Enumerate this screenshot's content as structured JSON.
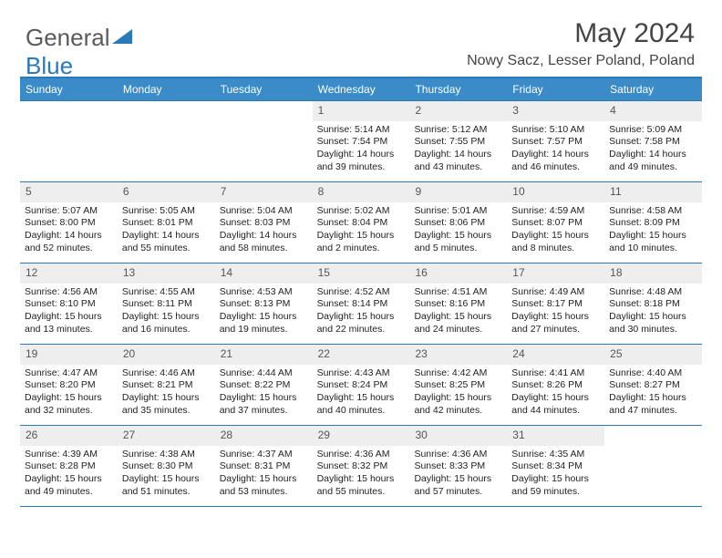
{
  "logo": {
    "part1": "General",
    "part2": "Blue"
  },
  "title": "May 2024",
  "subtitle": "Nowy Sacz, Lesser Poland, Poland",
  "calendar": {
    "header_bg": "#3b8bc9",
    "header_fg": "#ffffff",
    "border_color": "#2a7ab9",
    "daynum_bg": "#eeeeee",
    "text_color": "#222222",
    "font_size_body": 10.5,
    "font_size_header": 12,
    "days_of_week": [
      "Sunday",
      "Monday",
      "Tuesday",
      "Wednesday",
      "Thursday",
      "Friday",
      "Saturday"
    ],
    "weeks": [
      [
        null,
        null,
        null,
        {
          "n": "1",
          "sunrise": "5:14 AM",
          "sunset": "7:54 PM",
          "daylight": "14 hours and 39 minutes."
        },
        {
          "n": "2",
          "sunrise": "5:12 AM",
          "sunset": "7:55 PM",
          "daylight": "14 hours and 43 minutes."
        },
        {
          "n": "3",
          "sunrise": "5:10 AM",
          "sunset": "7:57 PM",
          "daylight": "14 hours and 46 minutes."
        },
        {
          "n": "4",
          "sunrise": "5:09 AM",
          "sunset": "7:58 PM",
          "daylight": "14 hours and 49 minutes."
        }
      ],
      [
        {
          "n": "5",
          "sunrise": "5:07 AM",
          "sunset": "8:00 PM",
          "daylight": "14 hours and 52 minutes."
        },
        {
          "n": "6",
          "sunrise": "5:05 AM",
          "sunset": "8:01 PM",
          "daylight": "14 hours and 55 minutes."
        },
        {
          "n": "7",
          "sunrise": "5:04 AM",
          "sunset": "8:03 PM",
          "daylight": "14 hours and 58 minutes."
        },
        {
          "n": "8",
          "sunrise": "5:02 AM",
          "sunset": "8:04 PM",
          "daylight": "15 hours and 2 minutes."
        },
        {
          "n": "9",
          "sunrise": "5:01 AM",
          "sunset": "8:06 PM",
          "daylight": "15 hours and 5 minutes."
        },
        {
          "n": "10",
          "sunrise": "4:59 AM",
          "sunset": "8:07 PM",
          "daylight": "15 hours and 8 minutes."
        },
        {
          "n": "11",
          "sunrise": "4:58 AM",
          "sunset": "8:09 PM",
          "daylight": "15 hours and 10 minutes."
        }
      ],
      [
        {
          "n": "12",
          "sunrise": "4:56 AM",
          "sunset": "8:10 PM",
          "daylight": "15 hours and 13 minutes."
        },
        {
          "n": "13",
          "sunrise": "4:55 AM",
          "sunset": "8:11 PM",
          "daylight": "15 hours and 16 minutes."
        },
        {
          "n": "14",
          "sunrise": "4:53 AM",
          "sunset": "8:13 PM",
          "daylight": "15 hours and 19 minutes."
        },
        {
          "n": "15",
          "sunrise": "4:52 AM",
          "sunset": "8:14 PM",
          "daylight": "15 hours and 22 minutes."
        },
        {
          "n": "16",
          "sunrise": "4:51 AM",
          "sunset": "8:16 PM",
          "daylight": "15 hours and 24 minutes."
        },
        {
          "n": "17",
          "sunrise": "4:49 AM",
          "sunset": "8:17 PM",
          "daylight": "15 hours and 27 minutes."
        },
        {
          "n": "18",
          "sunrise": "4:48 AM",
          "sunset": "8:18 PM",
          "daylight": "15 hours and 30 minutes."
        }
      ],
      [
        {
          "n": "19",
          "sunrise": "4:47 AM",
          "sunset": "8:20 PM",
          "daylight": "15 hours and 32 minutes."
        },
        {
          "n": "20",
          "sunrise": "4:46 AM",
          "sunset": "8:21 PM",
          "daylight": "15 hours and 35 minutes."
        },
        {
          "n": "21",
          "sunrise": "4:44 AM",
          "sunset": "8:22 PM",
          "daylight": "15 hours and 37 minutes."
        },
        {
          "n": "22",
          "sunrise": "4:43 AM",
          "sunset": "8:24 PM",
          "daylight": "15 hours and 40 minutes."
        },
        {
          "n": "23",
          "sunrise": "4:42 AM",
          "sunset": "8:25 PM",
          "daylight": "15 hours and 42 minutes."
        },
        {
          "n": "24",
          "sunrise": "4:41 AM",
          "sunset": "8:26 PM",
          "daylight": "15 hours and 44 minutes."
        },
        {
          "n": "25",
          "sunrise": "4:40 AM",
          "sunset": "8:27 PM",
          "daylight": "15 hours and 47 minutes."
        }
      ],
      [
        {
          "n": "26",
          "sunrise": "4:39 AM",
          "sunset": "8:28 PM",
          "daylight": "15 hours and 49 minutes."
        },
        {
          "n": "27",
          "sunrise": "4:38 AM",
          "sunset": "8:30 PM",
          "daylight": "15 hours and 51 minutes."
        },
        {
          "n": "28",
          "sunrise": "4:37 AM",
          "sunset": "8:31 PM",
          "daylight": "15 hours and 53 minutes."
        },
        {
          "n": "29",
          "sunrise": "4:36 AM",
          "sunset": "8:32 PM",
          "daylight": "15 hours and 55 minutes."
        },
        {
          "n": "30",
          "sunrise": "4:36 AM",
          "sunset": "8:33 PM",
          "daylight": "15 hours and 57 minutes."
        },
        {
          "n": "31",
          "sunrise": "4:35 AM",
          "sunset": "8:34 PM",
          "daylight": "15 hours and 59 minutes."
        },
        null
      ]
    ]
  },
  "labels": {
    "sunrise": "Sunrise:",
    "sunset": "Sunset:",
    "daylight": "Daylight:"
  }
}
